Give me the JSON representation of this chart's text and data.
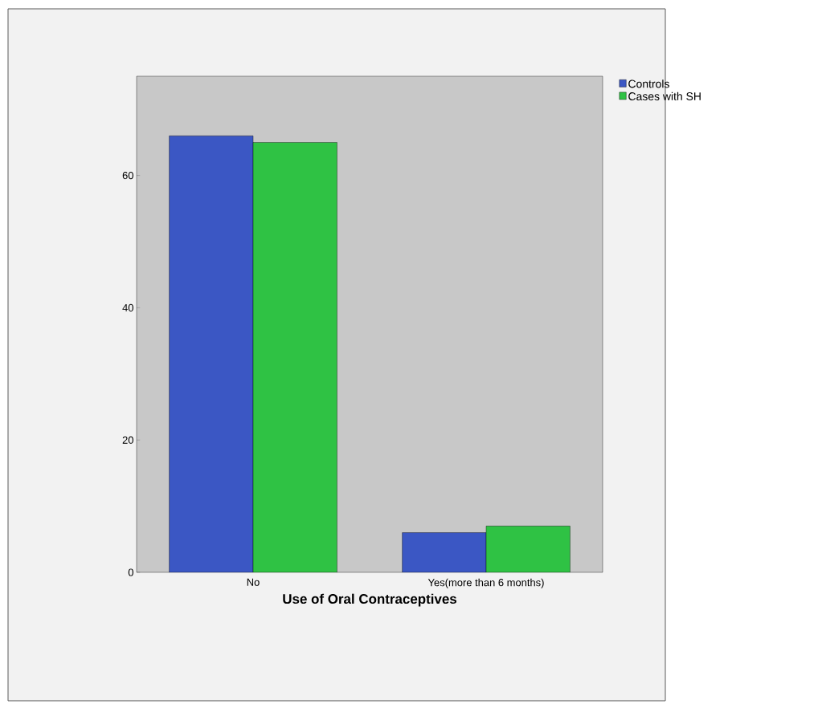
{
  "chart_data": {
    "type": "bar",
    "xlabel": "Use of Oral Contraceptives",
    "categories": [
      "No",
      "Yes(more than 6 months)"
    ],
    "series": [
      {
        "name": "Controls",
        "color": "#3b57c4",
        "values": [
          66,
          6
        ]
      },
      {
        "name": "Cases with SH",
        "color": "#2fc244",
        "values": [
          65,
          7
        ]
      }
    ],
    "ylim": [
      0,
      75
    ],
    "yticks": [
      0,
      20,
      40,
      60
    ],
    "grid": false,
    "legend": "top right"
  }
}
